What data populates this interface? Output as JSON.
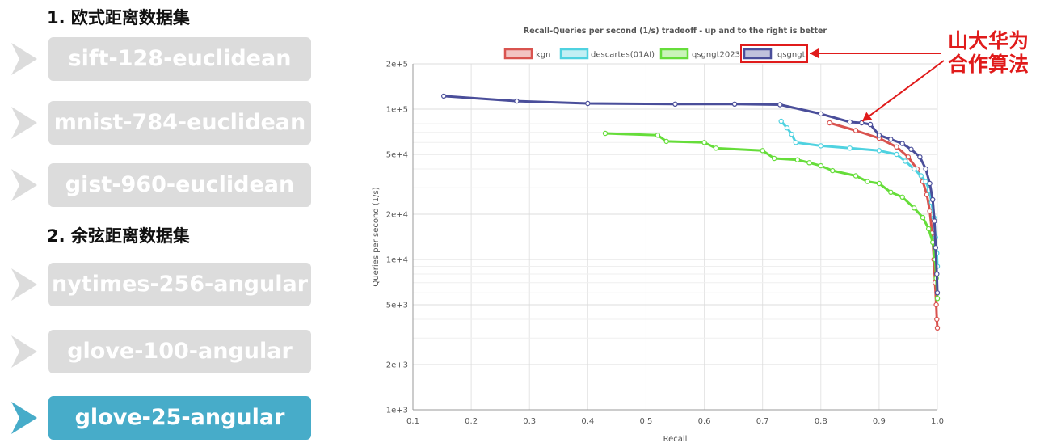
{
  "sections": [
    {
      "heading": "1. 欧式距离数据集",
      "items": [
        "sift-128-euclidean",
        "mnist-784-euclidean",
        "gist-960-euclidean"
      ]
    },
    {
      "heading": "2. 余弦距离数据集",
      "items": [
        "nytimes-256-angular",
        "glove-100-angular",
        "glove-25-angular"
      ]
    }
  ],
  "active_dataset": "glove-25-angular",
  "colors": {
    "inactive": "#dcdcdc",
    "active": "#47acc9",
    "annotation": "#e01b1b"
  },
  "annotation": {
    "line1": "山大华为",
    "line2": "合作算法"
  },
  "chart_data": {
    "type": "line",
    "title": "Recall-Queries per second (1/s) tradeoff - up and to the right is better",
    "xlabel": "Recall",
    "ylabel": "Queries per second (1/s)",
    "xlim": [
      0.1,
      1.0
    ],
    "ylim": [
      1000,
      200000
    ],
    "yscale": "log",
    "grid": true,
    "legend_position": "top",
    "x_ticks": [
      "0.1",
      "0.2",
      "0.3",
      "0.4",
      "0.5",
      "0.6",
      "0.7",
      "0.8",
      "0.9",
      "1.0"
    ],
    "y_ticks": [
      {
        "value": 200000,
        "label": "2e+5"
      },
      {
        "value": 100000,
        "label": "1e+5"
      },
      {
        "value": 50000,
        "label": "5e+4"
      },
      {
        "value": 20000,
        "label": "2e+4"
      },
      {
        "value": 10000,
        "label": "1e+4"
      },
      {
        "value": 5000,
        "label": "5e+3"
      },
      {
        "value": 2000,
        "label": "2e+3"
      },
      {
        "value": 1000,
        "label": "1e+3"
      }
    ],
    "series": [
      {
        "name": "kgn",
        "color": "#d9534f",
        "points": [
          [
            0.815,
            81000
          ],
          [
            0.86,
            72000
          ],
          [
            0.9,
            64000
          ],
          [
            0.93,
            56000
          ],
          [
            0.95,
            48000
          ],
          [
            0.965,
            40000
          ],
          [
            0.975,
            33000
          ],
          [
            0.982,
            27000
          ],
          [
            0.987,
            21000
          ],
          [
            0.991,
            15000
          ],
          [
            0.994,
            10000
          ],
          [
            0.996,
            7000
          ],
          [
            0.998,
            5000
          ],
          [
            0.999,
            4000
          ],
          [
            1.0,
            3500
          ]
        ]
      },
      {
        "name": "descartes(01AI)",
        "color": "#4fd2e0",
        "points": [
          [
            0.732,
            83000
          ],
          [
            0.742,
            75000
          ],
          [
            0.75,
            68000
          ],
          [
            0.757,
            60000
          ],
          [
            0.8,
            57000
          ],
          [
            0.85,
            55000
          ],
          [
            0.9,
            53000
          ],
          [
            0.93,
            50000
          ],
          [
            0.945,
            45000
          ],
          [
            0.96,
            40000
          ],
          [
            0.972,
            36000
          ],
          [
            0.98,
            33000
          ],
          [
            0.986,
            29000
          ],
          [
            0.99,
            24000
          ],
          [
            0.994,
            19000
          ],
          [
            0.997,
            14000
          ],
          [
            0.999,
            11000
          ],
          [
            1.0,
            9000
          ]
        ]
      },
      {
        "name": "qsgngt2023",
        "color": "#66dd3a",
        "points": [
          [
            0.43,
            69000
          ],
          [
            0.52,
            67000
          ],
          [
            0.535,
            61000
          ],
          [
            0.6,
            60000
          ],
          [
            0.62,
            55000
          ],
          [
            0.7,
            53000
          ],
          [
            0.72,
            47000
          ],
          [
            0.76,
            46000
          ],
          [
            0.78,
            44000
          ],
          [
            0.8,
            42000
          ],
          [
            0.82,
            39000
          ],
          [
            0.86,
            36000
          ],
          [
            0.88,
            33000
          ],
          [
            0.9,
            32000
          ],
          [
            0.92,
            28000
          ],
          [
            0.94,
            26000
          ],
          [
            0.96,
            22000
          ],
          [
            0.975,
            19000
          ],
          [
            0.985,
            16000
          ],
          [
            0.992,
            13000
          ],
          [
            0.996,
            10000
          ],
          [
            0.998,
            7500
          ],
          [
            1.0,
            5500
          ]
        ]
      },
      {
        "name": "qsgngt",
        "color": "#4a4e9a",
        "points": [
          [
            0.153,
            122000
          ],
          [
            0.278,
            113000
          ],
          [
            0.4,
            109000
          ],
          [
            0.55,
            108000
          ],
          [
            0.652,
            108000
          ],
          [
            0.73,
            107000
          ],
          [
            0.8,
            93000
          ],
          [
            0.85,
            82000
          ],
          [
            0.87,
            81000
          ],
          [
            0.885,
            79000
          ],
          [
            0.9,
            67000
          ],
          [
            0.92,
            63000
          ],
          [
            0.94,
            59000
          ],
          [
            0.955,
            54000
          ],
          [
            0.97,
            48000
          ],
          [
            0.98,
            40000
          ],
          [
            0.987,
            32000
          ],
          [
            0.992,
            25000
          ],
          [
            0.995,
            18000
          ],
          [
            0.997,
            12000
          ],
          [
            0.999,
            8000
          ],
          [
            1.0,
            6000
          ]
        ]
      }
    ]
  }
}
